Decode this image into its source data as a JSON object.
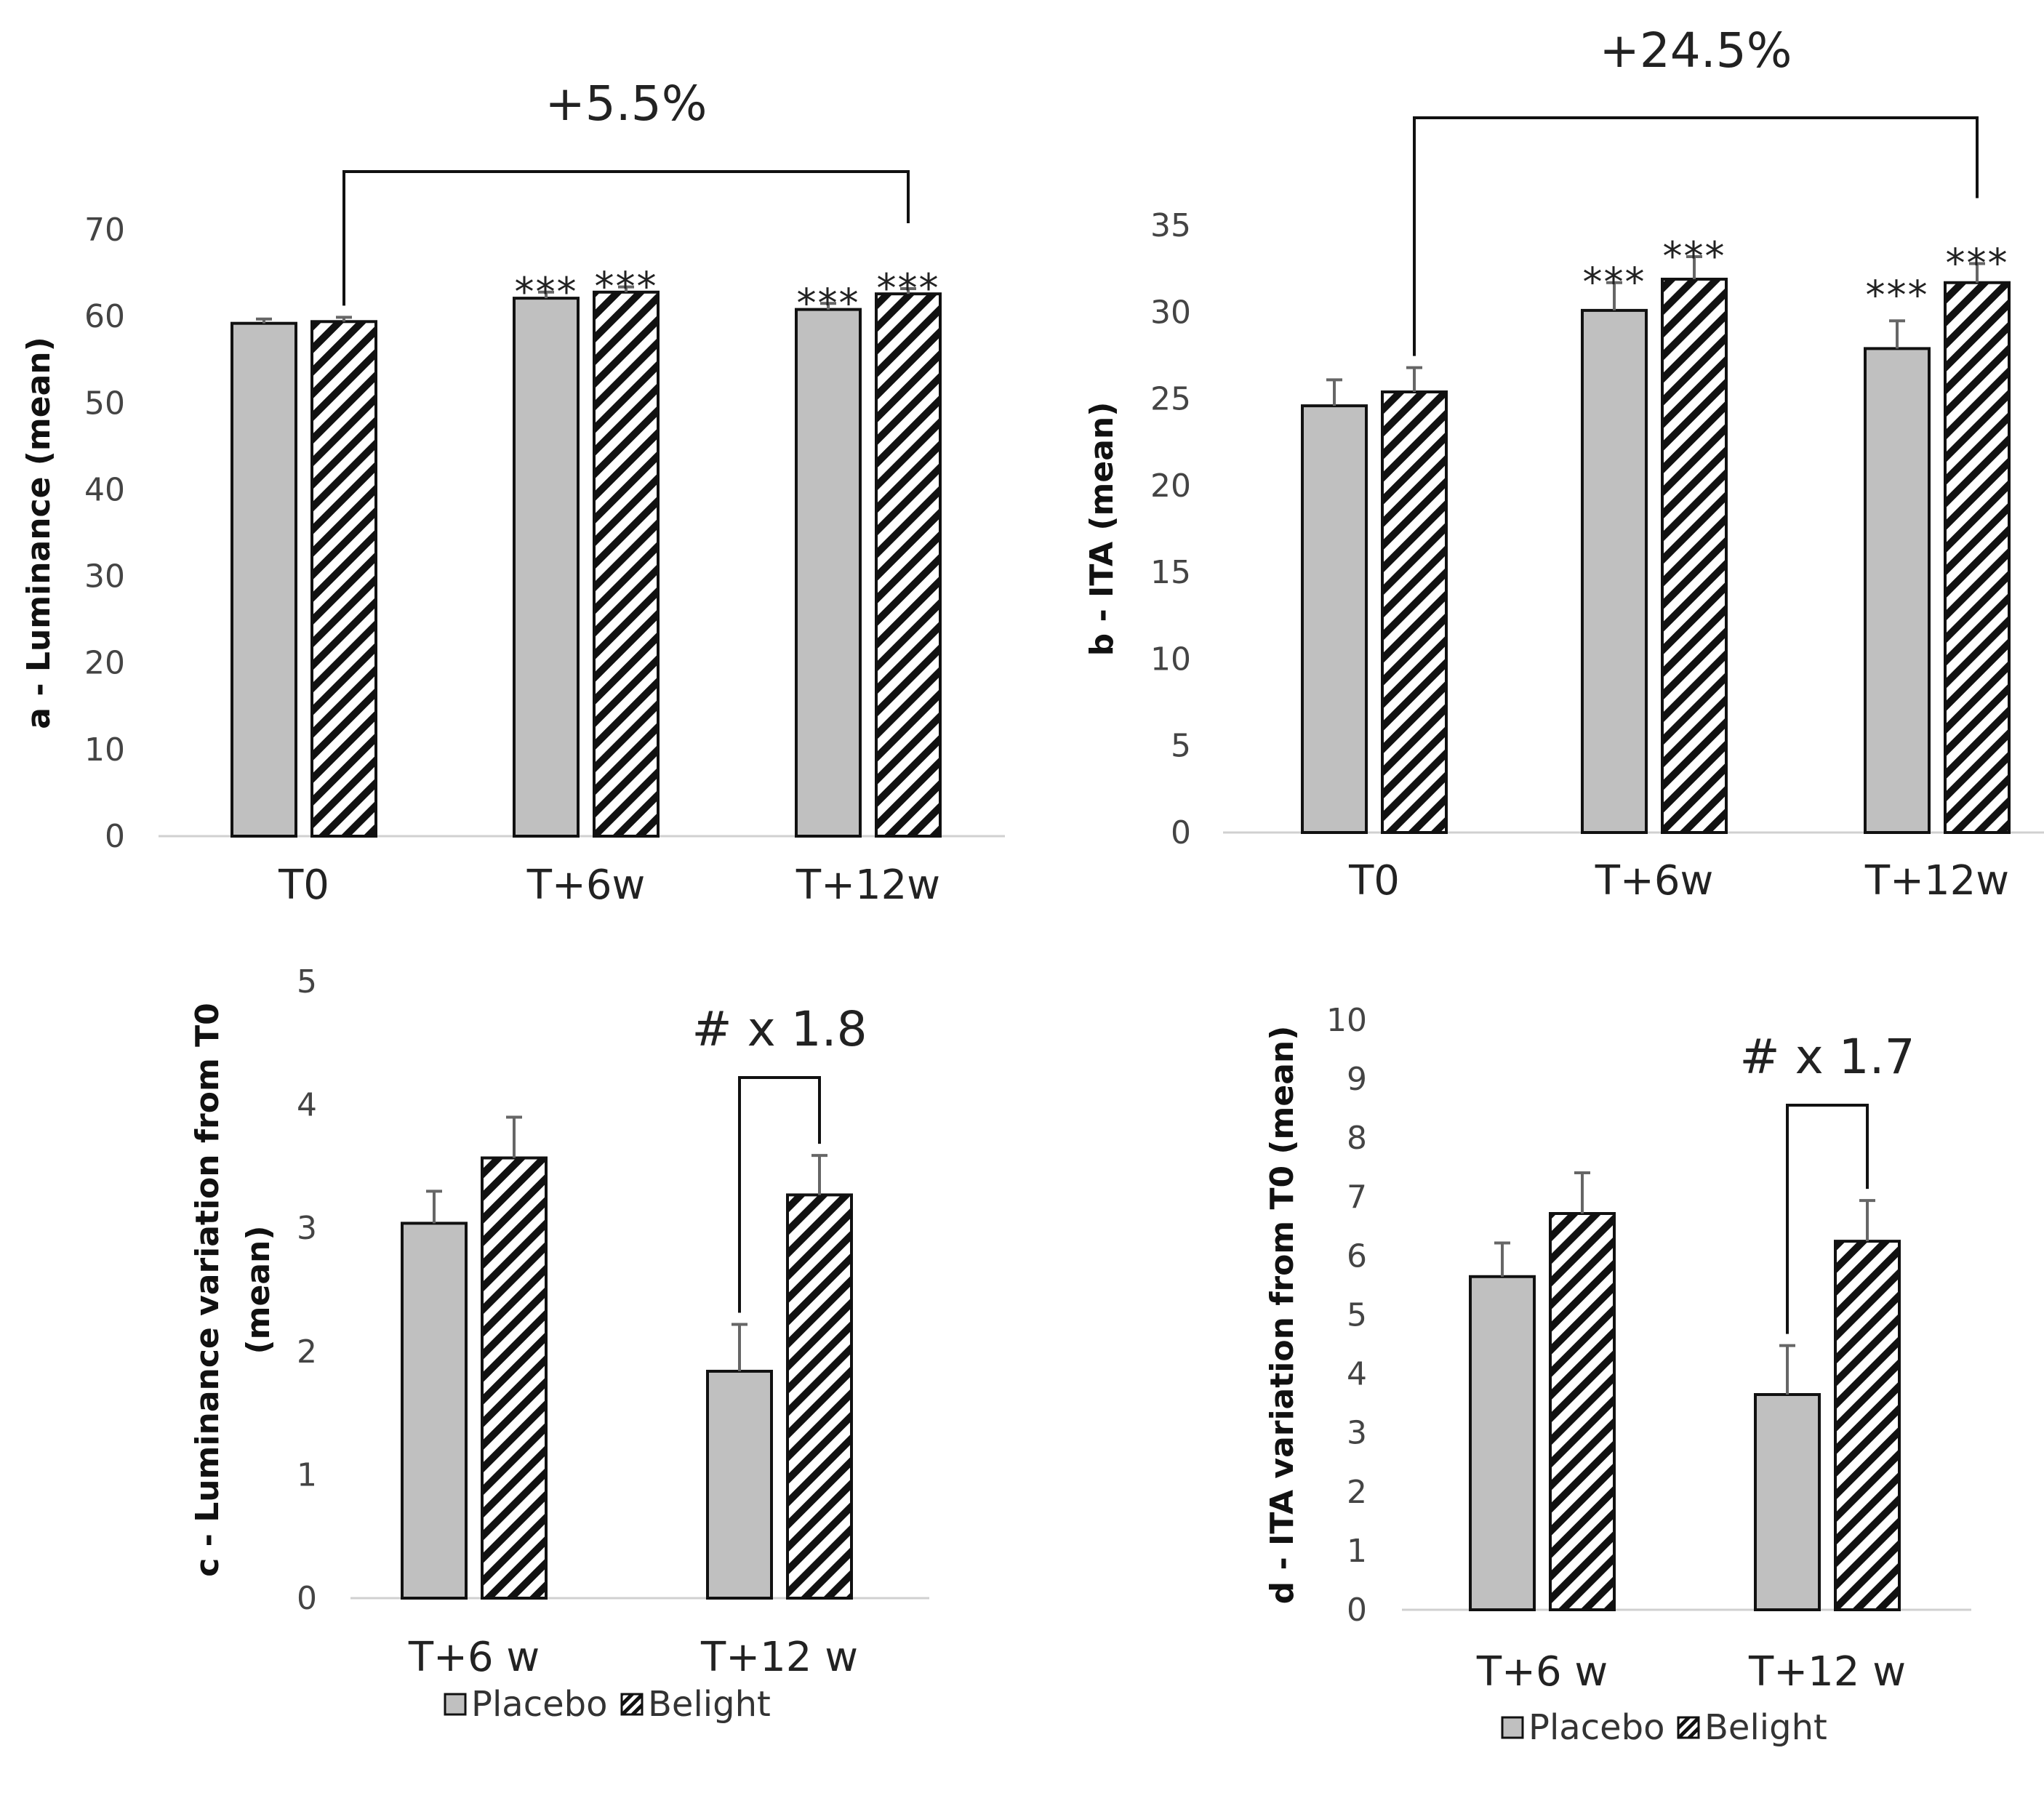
{
  "chart_data": [
    {
      "id": "a",
      "type": "bar",
      "categories": [
        "T0",
        "T+6w",
        "T+12w"
      ],
      "series": [
        {
          "name": "Placebo",
          "values": [
            59.2,
            62.1,
            60.8
          ],
          "errors": [
            0.5,
            0.7,
            0.7
          ]
        },
        {
          "name": "Belight",
          "values": [
            59.4,
            62.8,
            62.6
          ],
          "errors": [
            0.5,
            0.6,
            0.6
          ]
        }
      ],
      "ylabel": "a - Luminance (mean)",
      "ylim": [
        0,
        70
      ],
      "yticks": [
        0,
        10,
        20,
        30,
        40,
        50,
        60,
        70
      ],
      "significance": [
        {
          "category": 1,
          "series": 0,
          "label": "***"
        },
        {
          "category": 1,
          "series": 1,
          "label": "***"
        },
        {
          "category": 2,
          "series": 0,
          "label": "***"
        },
        {
          "category": 2,
          "series": 1,
          "label": "***"
        }
      ],
      "bracket": {
        "from": {
          "category": 0,
          "series": 1
        },
        "to": {
          "category": 2,
          "series": 1
        },
        "label": "+5.5%"
      }
    },
    {
      "id": "b",
      "type": "bar",
      "categories": [
        "T0",
        "T+6w",
        "T+12w"
      ],
      "series": [
        {
          "name": "Placebo",
          "values": [
            24.6,
            30.1,
            27.9
          ],
          "errors": [
            1.5,
            1.6,
            1.6
          ]
        },
        {
          "name": "Belight",
          "values": [
            25.4,
            31.9,
            31.7
          ],
          "errors": [
            1.4,
            1.3,
            1.1
          ]
        }
      ],
      "ylabel": "b - ITA (mean)",
      "ylim": [
        0,
        35
      ],
      "yticks": [
        0,
        5,
        10,
        15,
        20,
        25,
        30,
        35
      ],
      "significance": [
        {
          "category": 1,
          "series": 0,
          "label": "***"
        },
        {
          "category": 1,
          "series": 1,
          "label": "***"
        },
        {
          "category": 2,
          "series": 0,
          "label": "***"
        },
        {
          "category": 2,
          "series": 1,
          "label": "***"
        }
      ],
      "bracket": {
        "from": {
          "category": 0,
          "series": 1
        },
        "to": {
          "category": 2,
          "series": 1
        },
        "label": "+24.5%"
      }
    },
    {
      "id": "c",
      "type": "bar",
      "categories": [
        "T+6 w",
        "T+12 w"
      ],
      "series": [
        {
          "name": "Placebo",
          "values": [
            3.04,
            1.84
          ],
          "errors": [
            0.26,
            0.38
          ]
        },
        {
          "name": "Belight",
          "values": [
            3.57,
            3.27
          ],
          "errors": [
            0.33,
            0.32
          ]
        }
      ],
      "ylabel": [
        "c -  Luminance variation from T0",
        "(mean)"
      ],
      "ylim": [
        0,
        5
      ],
      "yticks": [
        0,
        1,
        2,
        3,
        4,
        5
      ],
      "bracket": {
        "from": {
          "category": 1,
          "series": 0
        },
        "to": {
          "category": 1,
          "series": 1
        },
        "label": "# x 1.8"
      },
      "legend": [
        "Placebo",
        "Belight"
      ]
    },
    {
      "id": "d",
      "type": "bar",
      "categories": [
        "T+6 w",
        "T+12 w"
      ],
      "series": [
        {
          "name": "Placebo",
          "values": [
            5.65,
            3.65
          ],
          "errors": [
            0.57,
            0.83
          ]
        },
        {
          "name": "Belight",
          "values": [
            6.72,
            6.25
          ],
          "errors": [
            0.69,
            0.69
          ]
        }
      ],
      "ylabel": "d - ITA variation from T0 (mean)",
      "ylim": [
        0,
        10
      ],
      "yticks": [
        0,
        1,
        2,
        3,
        4,
        5,
        6,
        7,
        8,
        9,
        10
      ],
      "bracket": {
        "from": {
          "category": 1,
          "series": 0
        },
        "to": {
          "category": 1,
          "series": 1
        },
        "label": "# x 1.7"
      },
      "legend": [
        "Placebo",
        "Belight"
      ]
    }
  ]
}
